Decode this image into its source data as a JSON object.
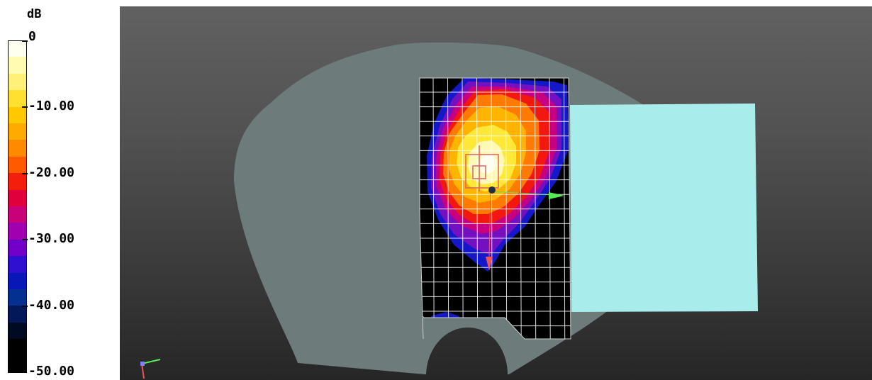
{
  "legend": {
    "unit": "dB",
    "labels": [
      "0",
      "-10.00",
      "-20.00",
      "-30.00",
      "-40.00",
      "-50.00"
    ],
    "bands": [
      "#fffff0",
      "#fffbb0",
      "#fff07a",
      "#ffe030",
      "#ffc800",
      "#ffaa00",
      "#ff8a00",
      "#ff5a00",
      "#f41e0c",
      "#e0003c",
      "#c8007a",
      "#a000b0",
      "#7000c8",
      "#3010d0",
      "#0818b8",
      "#043090",
      "#021858",
      "#000a20",
      "#000000",
      "#000000"
    ]
  },
  "viewer": {
    "phantom_color": "#6d7b7b",
    "grid_color": "#ffffff",
    "source_plane_color": "#a9ecec",
    "axis_colors": {
      "x": "#55ee55",
      "y": "#ee5555"
    }
  }
}
